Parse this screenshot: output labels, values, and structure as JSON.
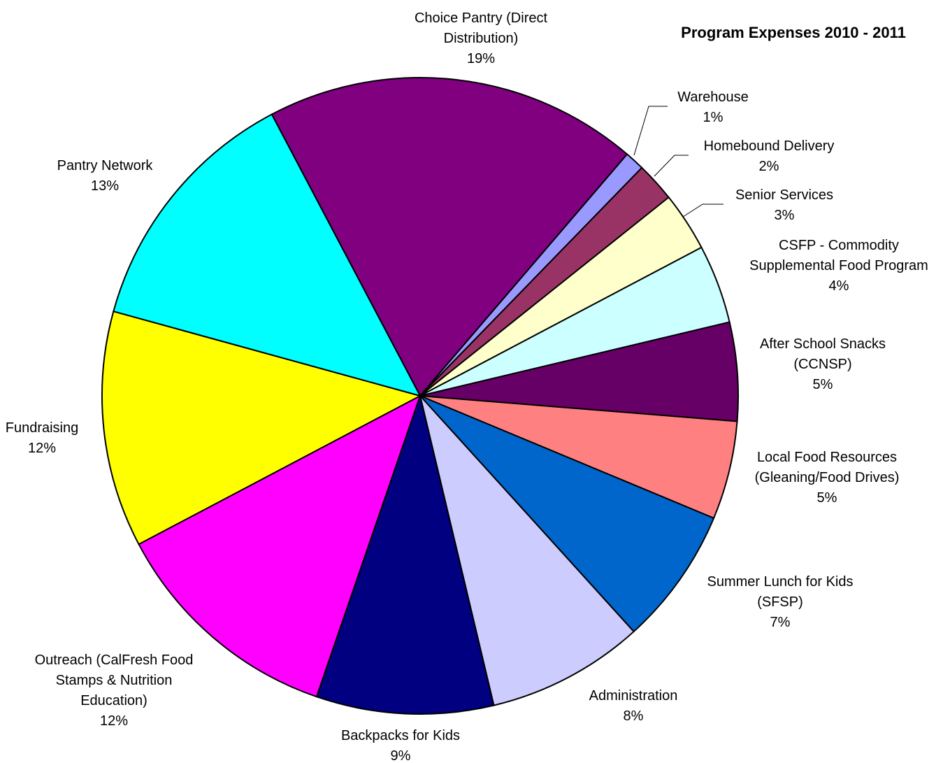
{
  "chart_data": {
    "type": "pie",
    "title": "Program Expenses 2010 - 2011",
    "categories": [
      "Choice Pantry (Direct Distribution)",
      "Warehouse",
      "Homebound Delivery",
      "Senior Services",
      "CSFP - Commodity Supplemental Food Program",
      "After School Snacks (CCNSP)",
      "Local Food Resources (Gleaning/Food Drives)",
      "Summer Lunch for Kids (SFSP)",
      "Administration",
      "Backpacks for Kids",
      "Outreach (CalFresh Food Stamps & Nutrition Education)",
      "Fundraising",
      "Pantry Network"
    ],
    "values": [
      19,
      1,
      2,
      3,
      4,
      5,
      5,
      7,
      8,
      9,
      12,
      12,
      13
    ],
    "value_labels": [
      "19%",
      "1%",
      "2%",
      "3%",
      "4%",
      "5%",
      "5%",
      "7%",
      "8%",
      "9%",
      "12%",
      "12%",
      "13%"
    ],
    "colors": [
      "#800080",
      "#9999ff",
      "#993366",
      "#ffffcc",
      "#ccffff",
      "#660066",
      "#ff8080",
      "#0066cc",
      "#ccccff",
      "#000080",
      "#ff00ff",
      "#ffff00",
      "#00ffff"
    ]
  }
}
